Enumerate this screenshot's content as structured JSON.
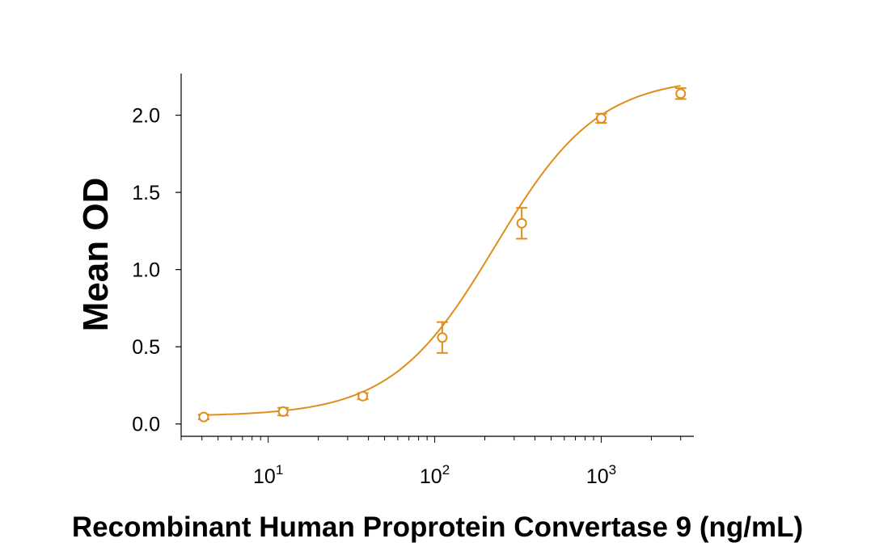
{
  "chart_data": {
    "type": "scatter",
    "title": "",
    "xlabel": "Recombinant Human Proprotein Convertase 9 (ng/mL)",
    "ylabel": "Mean OD",
    "xscale": "log",
    "xlim": [
      3,
      3600
    ],
    "ylim": [
      -0.08,
      2.27
    ],
    "x_ticks": [
      {
        "value": 10,
        "base": "10",
        "exp": "1"
      },
      {
        "value": 100,
        "base": "10",
        "exp": "2"
      },
      {
        "value": 1000,
        "base": "10",
        "exp": "3"
      }
    ],
    "y_ticks": [
      {
        "value": 0.0,
        "label": "0.0"
      },
      {
        "value": 0.5,
        "label": "0.5"
      },
      {
        "value": 1.0,
        "label": "1.0"
      },
      {
        "value": 1.5,
        "label": "1.5"
      },
      {
        "value": 2.0,
        "label": "2.0"
      }
    ],
    "grid": false,
    "legend": "none",
    "series": [
      {
        "color": "#e08e1b",
        "x": [
          4.1,
          12.3,
          37,
          111,
          333,
          1000,
          3000
        ],
        "y": [
          0.045,
          0.08,
          0.18,
          0.56,
          1.3,
          1.98,
          2.14
        ],
        "err": [
          0.015,
          0.025,
          0.02,
          0.1,
          0.1,
          0.03,
          0.035
        ]
      }
    ],
    "fit_curve": {
      "model": "4PL",
      "bottom": 0.05,
      "top": 2.25,
      "ec50": 230,
      "hill": 1.4,
      "color": "#e08e1b"
    }
  }
}
